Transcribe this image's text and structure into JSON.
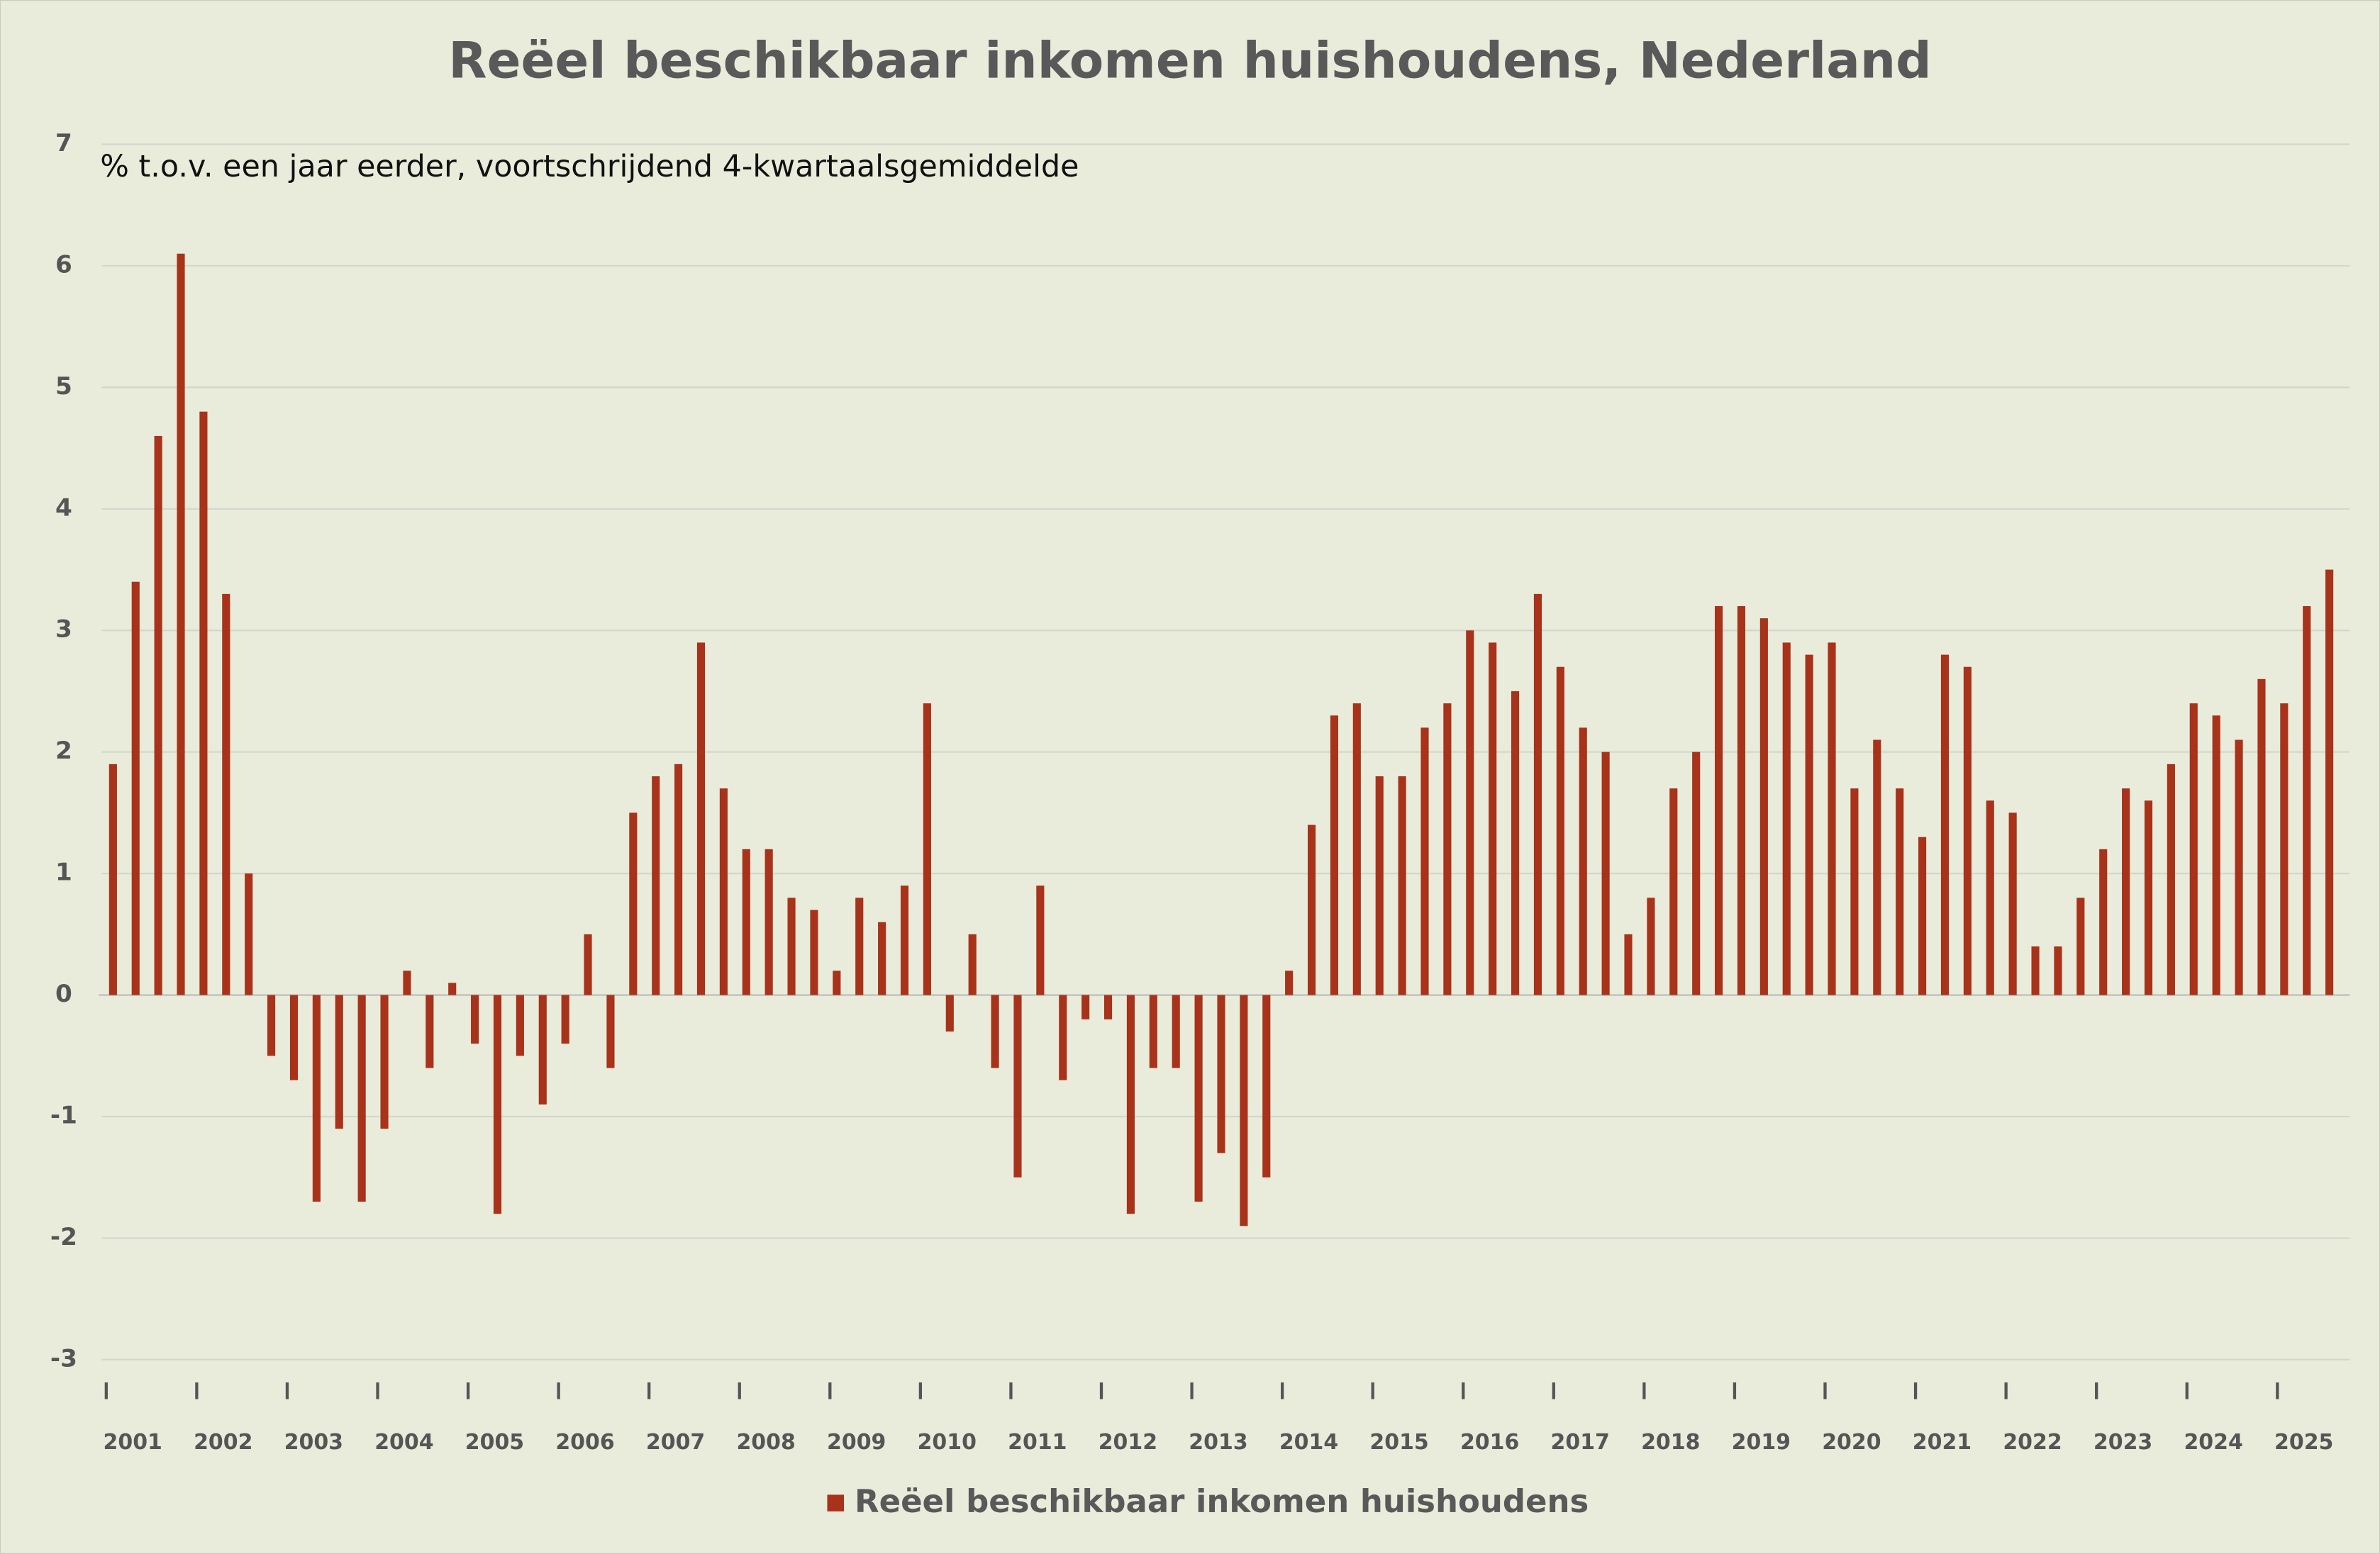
{
  "chart_data": {
    "type": "bar",
    "title": "Reëel beschikbaar inkomen huishoudens, Nederland",
    "subtitle": "% t.o.v. een jaar eerder, voortschrijdend 4-kwartaalsgemiddelde",
    "categories": [
      "2001",
      null,
      null,
      null,
      "2002",
      null,
      null,
      null,
      "2003",
      null,
      null,
      null,
      "2004",
      null,
      null,
      null,
      "2005",
      null,
      null,
      null,
      "2006",
      null,
      null,
      null,
      "2007",
      null,
      null,
      null,
      "2008",
      null,
      null,
      null,
      "2009",
      null,
      null,
      null,
      "2010",
      null,
      null,
      null,
      "2011",
      null,
      null,
      null,
      "2012",
      null,
      null,
      null,
      "2013",
      null,
      null,
      null,
      "2014",
      null,
      null,
      null,
      "2015",
      null,
      null,
      null,
      "2016",
      null,
      null,
      null,
      "2017",
      null,
      null,
      null,
      "2018",
      null,
      null,
      null,
      "2019",
      null,
      null,
      null,
      "2020",
      null,
      null,
      null,
      "2021",
      null,
      null,
      null,
      "2022",
      null,
      null,
      null,
      "2023",
      null,
      null,
      null,
      "2024",
      null,
      null,
      null,
      "2025",
      null,
      null
    ],
    "series": [
      {
        "name": "Reëel beschikbaar inkomen huishoudens",
        "color": "#a8321a",
        "values": [
          1.9,
          3.4,
          4.6,
          6.1,
          4.8,
          3.3,
          1.0,
          -0.5,
          -0.7,
          -1.7,
          -1.1,
          -1.7,
          -1.1,
          0.2,
          -0.6,
          0.1,
          -0.4,
          -1.8,
          -0.5,
          -0.9,
          -0.4,
          0.5,
          -0.6,
          1.5,
          1.8,
          1.9,
          2.9,
          1.7,
          1.2,
          1.2,
          0.8,
          0.7,
          0.2,
          0.8,
          0.6,
          0.9,
          2.4,
          -0.3,
          0.5,
          -0.6,
          -1.5,
          0.9,
          -0.7,
          -0.2,
          -0.2,
          -1.8,
          -0.6,
          -0.6,
          -1.7,
          -1.3,
          -1.9,
          -1.5,
          0.2,
          1.4,
          2.3,
          2.4,
          1.8,
          1.8,
          2.2,
          2.4,
          3.0,
          2.9,
          2.5,
          3.3,
          2.7,
          2.2,
          2.0,
          0.5,
          0.8,
          1.7,
          2.0,
          3.2,
          3.2,
          3.1,
          2.9,
          2.8,
          2.9,
          1.7,
          2.1,
          1.7,
          1.3,
          2.8,
          2.7,
          1.6,
          1.5,
          0.4,
          0.4,
          0.8,
          1.2,
          1.7,
          1.6,
          1.9,
          2.4,
          2.3,
          2.1,
          2.6,
          2.4,
          3.2,
          3.5
        ]
      }
    ],
    "ylim": [
      -3,
      7
    ],
    "yticks": [
      -3,
      -2,
      -1,
      0,
      1,
      2,
      3,
      4,
      5,
      6,
      7
    ],
    "grid": true,
    "legend": "bottom"
  }
}
